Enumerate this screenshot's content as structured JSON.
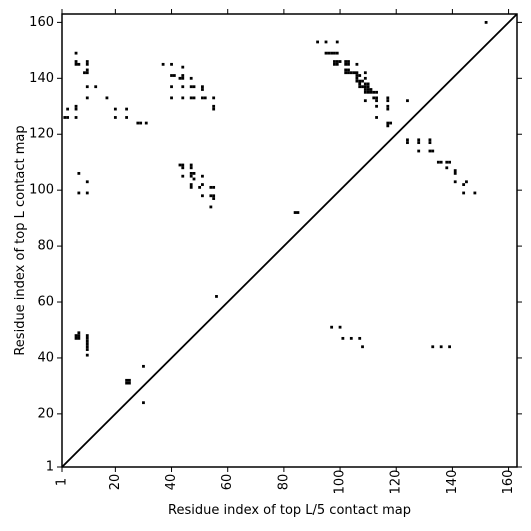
{
  "chart_data": {
    "type": "heatmap",
    "title": "",
    "xlabel": "Residue index of top L/5 contact map",
    "ylabel": "Residue index of top L contact map",
    "xlim": [
      1,
      163
    ],
    "ylim": [
      1,
      163
    ],
    "x_ticks": [
      1,
      20,
      40,
      60,
      80,
      100,
      120,
      140,
      160
    ],
    "y_ticks": [
      1,
      20,
      40,
      60,
      80,
      100,
      120,
      140,
      160
    ],
    "x_tick_rotation": -90,
    "grid": false,
    "diagonal_line": {
      "from": [
        1,
        1
      ],
      "to": [
        163,
        163
      ],
      "color": "#000000"
    },
    "marker_color": "#000000",
    "upper_triangle_contacts": [
      [
        2,
        126
      ],
      [
        3,
        126
      ],
      [
        3,
        129
      ],
      [
        6,
        126
      ],
      [
        6,
        129
      ],
      [
        6,
        130
      ],
      [
        6,
        145
      ],
      [
        6,
        146
      ],
      [
        6,
        149
      ],
      [
        7,
        145
      ],
      [
        7,
        106
      ],
      [
        7,
        99
      ],
      [
        9,
        142
      ],
      [
        10,
        142
      ],
      [
        10,
        143
      ],
      [
        10,
        145
      ],
      [
        10,
        146
      ],
      [
        10,
        133
      ],
      [
        10,
        137
      ],
      [
        10,
        103
      ],
      [
        10,
        99
      ],
      [
        13,
        137
      ],
      [
        17,
        133
      ],
      [
        20,
        126
      ],
      [
        20,
        129
      ],
      [
        24,
        126
      ],
      [
        24,
        129
      ],
      [
        28,
        124
      ],
      [
        29,
        124
      ],
      [
        31,
        124
      ],
      [
        37,
        145
      ],
      [
        40,
        145
      ],
      [
        40,
        141
      ],
      [
        41,
        141
      ],
      [
        40,
        137
      ],
      [
        40,
        133
      ],
      [
        43,
        140
      ],
      [
        44,
        140
      ],
      [
        44,
        141
      ],
      [
        44,
        144
      ],
      [
        44,
        137
      ],
      [
        44,
        133
      ],
      [
        43,
        109
      ],
      [
        44,
        109
      ],
      [
        44,
        108
      ],
      [
        44,
        105
      ],
      [
        47,
        140
      ],
      [
        47,
        137
      ],
      [
        48,
        137
      ],
      [
        47,
        133
      ],
      [
        48,
        133
      ],
      [
        47,
        109
      ],
      [
        47,
        108
      ],
      [
        47,
        106
      ],
      [
        47,
        105
      ],
      [
        48,
        106
      ],
      [
        47,
        102
      ],
      [
        47,
        101
      ],
      [
        48,
        104
      ],
      [
        51,
        137
      ],
      [
        51,
        136
      ],
      [
        51,
        133
      ],
      [
        52,
        133
      ],
      [
        51,
        105
      ],
      [
        51,
        102
      ],
      [
        50,
        101
      ],
      [
        51,
        98
      ],
      [
        54,
        101
      ],
      [
        55,
        101
      ],
      [
        55,
        133
      ],
      [
        55,
        130
      ],
      [
        55,
        129
      ],
      [
        54,
        98
      ],
      [
        55,
        98
      ],
      [
        55,
        97
      ],
      [
        54,
        94
      ],
      [
        84,
        92
      ],
      [
        85,
        92
      ],
      [
        92,
        153
      ],
      [
        95,
        153
      ],
      [
        95,
        149
      ],
      [
        96,
        149
      ],
      [
        97,
        149
      ],
      [
        98,
        149
      ],
      [
        99,
        149
      ],
      [
        98,
        146
      ],
      [
        99,
        146
      ],
      [
        100,
        146
      ],
      [
        98,
        145
      ],
      [
        99,
        145
      ],
      [
        99,
        153
      ],
      [
        102,
        146
      ],
      [
        103,
        146
      ],
      [
        102,
        145
      ],
      [
        103,
        145
      ],
      [
        102,
        143
      ],
      [
        103,
        143
      ],
      [
        102,
        142
      ],
      [
        103,
        142
      ],
      [
        104,
        142
      ],
      [
        105,
        142
      ],
      [
        106,
        142
      ],
      [
        106,
        145
      ],
      [
        106,
        141
      ],
      [
        107,
        141
      ],
      [
        106,
        140
      ],
      [
        106,
        139
      ],
      [
        107,
        139
      ],
      [
        108,
        139
      ],
      [
        107,
        138
      ],
      [
        107,
        137
      ],
      [
        108,
        137
      ],
      [
        109,
        138
      ],
      [
        110,
        138
      ],
      [
        109,
        137
      ],
      [
        110,
        137
      ],
      [
        109,
        136
      ],
      [
        110,
        136
      ],
      [
        111,
        136
      ],
      [
        109,
        135
      ],
      [
        110,
        135
      ],
      [
        111,
        135
      ],
      [
        112,
        135
      ],
      [
        113,
        135
      ],
      [
        109,
        142
      ],
      [
        109,
        140
      ],
      [
        109,
        132
      ],
      [
        112,
        133
      ],
      [
        113,
        133
      ],
      [
        113,
        132
      ],
      [
        113,
        130
      ],
      [
        113,
        126
      ],
      [
        117,
        133
      ],
      [
        117,
        132
      ],
      [
        117,
        130
      ],
      [
        117,
        129
      ],
      [
        117,
        124
      ],
      [
        117,
        123
      ],
      [
        118,
        124
      ],
      [
        124,
        132
      ],
      [
        124,
        118
      ],
      [
        124,
        117
      ],
      [
        128,
        118
      ],
      [
        128,
        117
      ],
      [
        128,
        114
      ],
      [
        132,
        118
      ],
      [
        132,
        117
      ],
      [
        132,
        114
      ],
      [
        133,
        114
      ],
      [
        135,
        110
      ],
      [
        136,
        110
      ],
      [
        138,
        110
      ],
      [
        139,
        110
      ],
      [
        138,
        108
      ],
      [
        141,
        107
      ],
      [
        141,
        106
      ],
      [
        141,
        103
      ],
      [
        144,
        102
      ],
      [
        144,
        99
      ],
      [
        145,
        103
      ],
      [
        148,
        99
      ],
      [
        152,
        160
      ]
    ],
    "lower_triangle_contacts": [
      [
        6,
        47
      ],
      [
        6,
        48
      ],
      [
        7,
        47
      ],
      [
        7,
        48
      ],
      [
        7,
        49
      ],
      [
        10,
        48
      ],
      [
        10,
        47
      ],
      [
        10,
        46
      ],
      [
        10,
        45
      ],
      [
        10,
        44
      ],
      [
        10,
        43
      ],
      [
        10,
        41
      ],
      [
        24,
        32
      ],
      [
        24,
        31
      ],
      [
        25,
        32
      ],
      [
        25,
        31
      ],
      [
        30,
        37
      ],
      [
        30,
        24
      ],
      [
        56,
        62
      ],
      [
        97,
        51
      ],
      [
        100,
        51
      ],
      [
        101,
        47
      ],
      [
        104,
        47
      ],
      [
        107,
        47
      ],
      [
        108,
        44
      ],
      [
        133,
        44
      ],
      [
        136,
        44
      ],
      [
        139,
        44
      ]
    ]
  }
}
